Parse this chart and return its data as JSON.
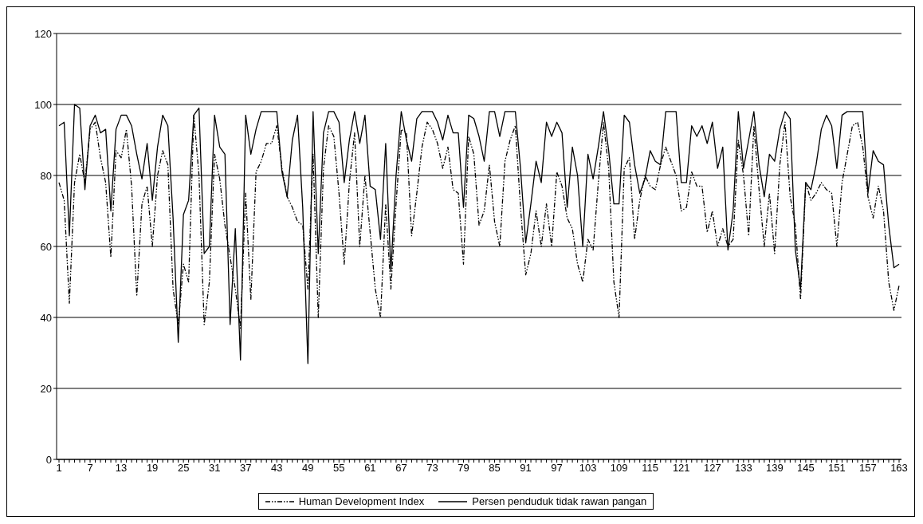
{
  "chart_data": {
    "type": "line",
    "categories": [
      "1",
      null,
      null,
      null,
      null,
      null,
      "7",
      null,
      null,
      null,
      null,
      null,
      "13",
      null,
      null,
      null,
      null,
      null,
      "19",
      null,
      null,
      null,
      null,
      null,
      "25",
      null,
      null,
      null,
      null,
      null,
      "31",
      null,
      null,
      null,
      null,
      null,
      "37",
      null,
      null,
      null,
      null,
      null,
      "43",
      null,
      null,
      null,
      null,
      null,
      "49",
      null,
      null,
      null,
      null,
      null,
      "55",
      null,
      null,
      null,
      null,
      null,
      "61",
      null,
      null,
      null,
      null,
      null,
      "67",
      null,
      null,
      null,
      null,
      null,
      "73",
      null,
      null,
      null,
      null,
      null,
      "79",
      null,
      null,
      null,
      null,
      null,
      "85",
      null,
      null,
      null,
      null,
      null,
      "91",
      null,
      null,
      null,
      null,
      null,
      "97",
      null,
      null,
      null,
      null,
      null,
      "103",
      null,
      null,
      null,
      null,
      null,
      "109",
      null,
      null,
      null,
      null,
      null,
      "115",
      null,
      null,
      null,
      null,
      null,
      "121",
      null,
      null,
      null,
      null,
      null,
      "127",
      null,
      null,
      null,
      null,
      null,
      "133",
      null,
      null,
      null,
      null,
      null,
      "139",
      null,
      null,
      null,
      null,
      null,
      "145",
      null,
      null,
      null,
      null,
      null,
      "151",
      null,
      null,
      null,
      null,
      null,
      "157",
      null,
      null,
      null,
      null,
      null,
      "163"
    ],
    "series": [
      {
        "name": "Human Development Index",
        "color": "#000000",
        "line_style": "dashed",
        "values": [
          78,
          73,
          44,
          78,
          86,
          78,
          93,
          95,
          85,
          78,
          57,
          87,
          85,
          93,
          77,
          46,
          72,
          77,
          60,
          80,
          87,
          83,
          48,
          38,
          55,
          50,
          97,
          80,
          38,
          50,
          86,
          79,
          66,
          57,
          48,
          37,
          75,
          45,
          81,
          84,
          89,
          89,
          94,
          82,
          74,
          71,
          67,
          66,
          48,
          86,
          40,
          82,
          94,
          91,
          75,
          55,
          78,
          92,
          60,
          80,
          64,
          48,
          40,
          72,
          48,
          72,
          93,
          92,
          63,
          75,
          88,
          95,
          93,
          89,
          82,
          88,
          76,
          75,
          55,
          91,
          86,
          66,
          70,
          83,
          67,
          60,
          84,
          90,
          94,
          71,
          52,
          58,
          70,
          60,
          72,
          60,
          81,
          77,
          68,
          65,
          55,
          50,
          62,
          59,
          78,
          95,
          82,
          50,
          40,
          82,
          85,
          62,
          73,
          80,
          77,
          76,
          83,
          88,
          84,
          80,
          70,
          71,
          81,
          77,
          77,
          64,
          70,
          60,
          65,
          60,
          62,
          90,
          80,
          63,
          94,
          76,
          60,
          75,
          58,
          83,
          95,
          74,
          66,
          45,
          78,
          73,
          75,
          78,
          76,
          75,
          60,
          78,
          86,
          94,
          95,
          88,
          74,
          68,
          77,
          70,
          50,
          42,
          49
        ]
      },
      {
        "name": "Persen penduduk tidak rawan pangan",
        "color": "#000000",
        "line_style": "solid",
        "values": [
          94,
          95,
          63,
          100,
          99,
          76,
          94,
          97,
          92,
          93,
          70,
          93,
          97,
          97,
          94,
          86,
          79,
          89,
          73,
          88,
          97,
          94,
          68,
          33,
          69,
          73,
          97,
          99,
          58,
          60,
          97,
          88,
          86,
          38,
          65,
          28,
          97,
          86,
          93,
          98,
          98,
          98,
          98,
          81,
          74,
          90,
          97,
          71,
          27,
          98,
          58,
          92,
          98,
          98,
          95,
          78,
          90,
          98,
          89,
          97,
          77,
          76,
          62,
          89,
          53,
          80,
          98,
          90,
          84,
          96,
          98,
          98,
          98,
          95,
          90,
          97,
          92,
          92,
          71,
          97,
          96,
          91,
          84,
          98,
          98,
          91,
          98,
          98,
          98,
          82,
          61,
          72,
          84,
          78,
          95,
          91,
          95,
          92,
          71,
          88,
          80,
          60,
          86,
          79,
          88,
          98,
          87,
          72,
          72,
          97,
          95,
          83,
          75,
          79,
          87,
          84,
          83,
          98,
          98,
          98,
          78,
          78,
          94,
          91,
          94,
          89,
          95,
          82,
          88,
          59,
          70,
          98,
          82,
          90,
          98,
          83,
          74,
          86,
          84,
          93,
          98,
          96,
          59,
          48,
          78,
          76,
          83,
          93,
          97,
          94,
          82,
          97,
          98,
          98,
          98,
          98,
          75,
          87,
          84,
          83,
          66,
          54,
          55
        ]
      }
    ],
    "ylim": [
      0,
      120
    ],
    "yticks": [
      0,
      20,
      40,
      60,
      80,
      100,
      120
    ],
    "grid": "y",
    "legend": "bottom"
  }
}
